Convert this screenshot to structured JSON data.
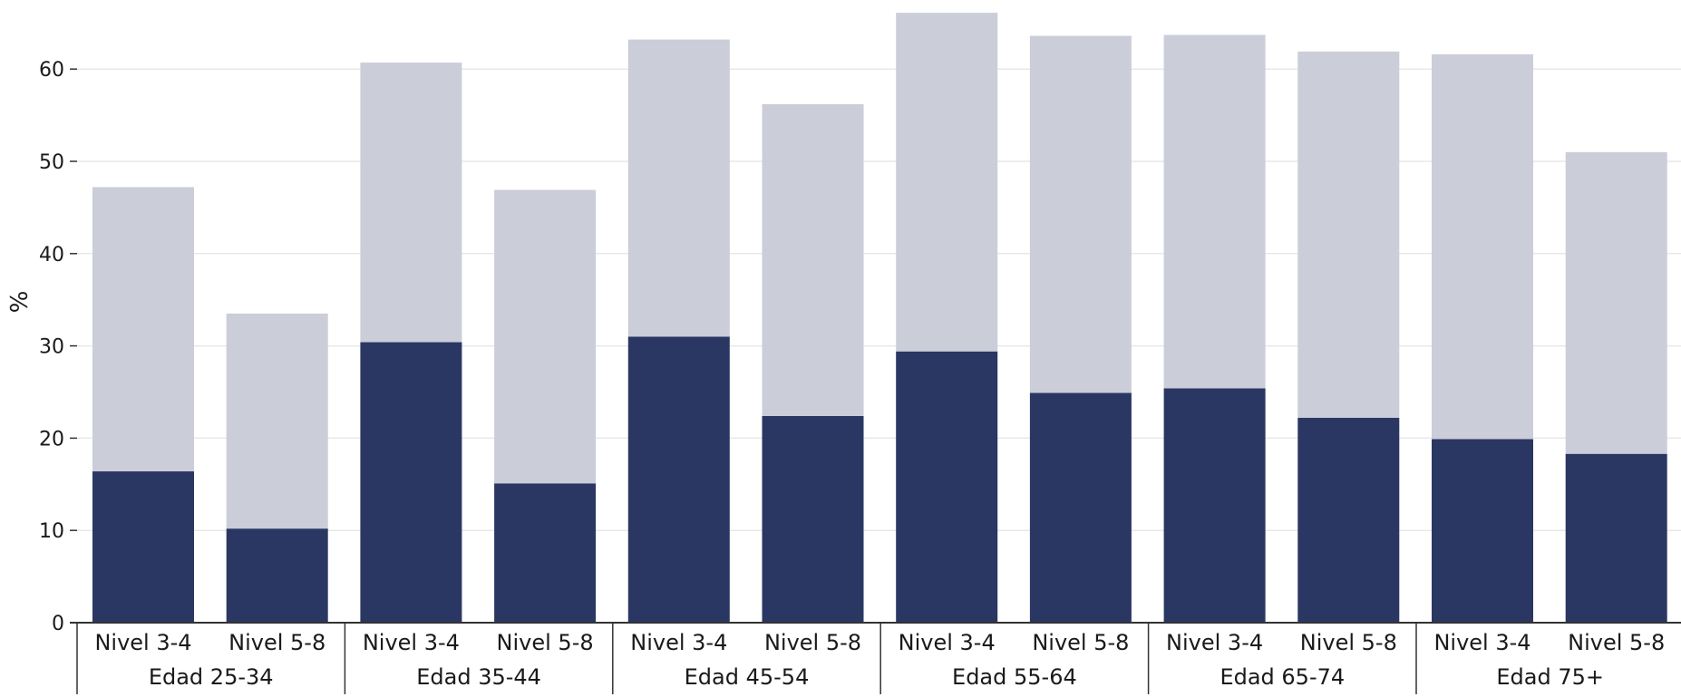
{
  "chart_data": {
    "type": "bar",
    "stacked": true,
    "ylabel": "%",
    "ylim": [
      0,
      66
    ],
    "yticks": [
      0,
      10,
      20,
      30,
      40,
      50,
      60
    ],
    "grid": true,
    "groups": [
      "Edad 25-34",
      "Edad 35-44",
      "Edad 45-54",
      "Edad 55-64",
      "Edad 65-74",
      "Edad 75+"
    ],
    "categories": [
      "Nivel 3-4",
      "Nivel 5-8",
      "Nivel 3-4",
      "Nivel 5-8",
      "Nivel 3-4",
      "Nivel 5-8",
      "Nivel 3-4",
      "Nivel 5-8",
      "Nivel 3-4",
      "Nivel 5-8",
      "Nivel 3-4",
      "Nivel 5-8"
    ],
    "series": [
      {
        "color": "#2b3763",
        "values": [
          16.4,
          10.2,
          30.4,
          15.1,
          31.0,
          22.4,
          29.4,
          24.9,
          25.4,
          22.2,
          19.9,
          18.3
        ]
      },
      {
        "color": "#cbcdd9",
        "values": [
          30.8,
          23.3,
          30.3,
          31.8,
          32.2,
          33.8,
          36.7,
          38.7,
          38.3,
          39.7,
          41.7,
          32.7
        ]
      }
    ]
  }
}
